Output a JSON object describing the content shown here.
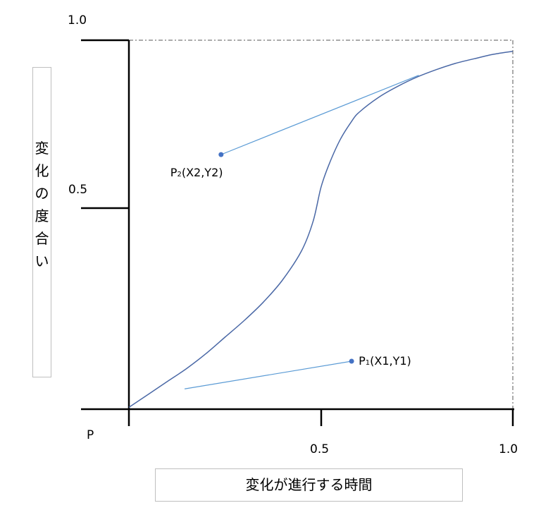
{
  "chart_data": {
    "type": "line",
    "ylabel": "変化の度合い",
    "xlabel": "変化が進行する時間",
    "origin_label": "P",
    "y_ticks": [
      "1.0",
      "0.5"
    ],
    "x_ticks": [
      "0.5",
      "1.0"
    ],
    "xlim": [
      0,
      1.0
    ],
    "ylim": [
      0,
      1.0
    ],
    "series": [
      {
        "x": [
          0,
          0.05,
          0.1,
          0.15,
          0.2,
          0.25,
          0.3,
          0.35,
          0.4,
          0.45,
          0.48,
          0.5,
          0.52,
          0.55,
          0.58,
          0.6,
          0.65,
          0.7,
          0.75,
          0.8,
          0.85,
          0.9,
          0.95,
          1.0
        ],
        "y": [
          0.005,
          0.04,
          0.075,
          0.11,
          0.15,
          0.195,
          0.24,
          0.29,
          0.35,
          0.43,
          0.51,
          0.6,
          0.66,
          0.73,
          0.78,
          0.805,
          0.845,
          0.875,
          0.9,
          0.92,
          0.937,
          0.95,
          0.962,
          0.97
        ]
      }
    ],
    "points": [
      {
        "name": "P1",
        "base": "P",
        "sub": "1",
        "coords": "(X1,Y1)",
        "x": 0.58,
        "y": 0.13,
        "tangent_to": {
          "x": 0.145,
          "y": 0.055
        },
        "color": "#4472c4"
      },
      {
        "name": "P2",
        "base": "P",
        "sub": "2",
        "coords": "(X2,Y2)",
        "x": 0.24,
        "y": 0.69,
        "tangent_to": {
          "x": 0.755,
          "y": 0.905
        },
        "color": "#4472c4"
      }
    ],
    "frame": "dashed-top-right",
    "colors": {
      "curve": "#4a68a6",
      "line": "#5b9bd5",
      "dot": "#4472c4",
      "axis": "#000000"
    }
  }
}
